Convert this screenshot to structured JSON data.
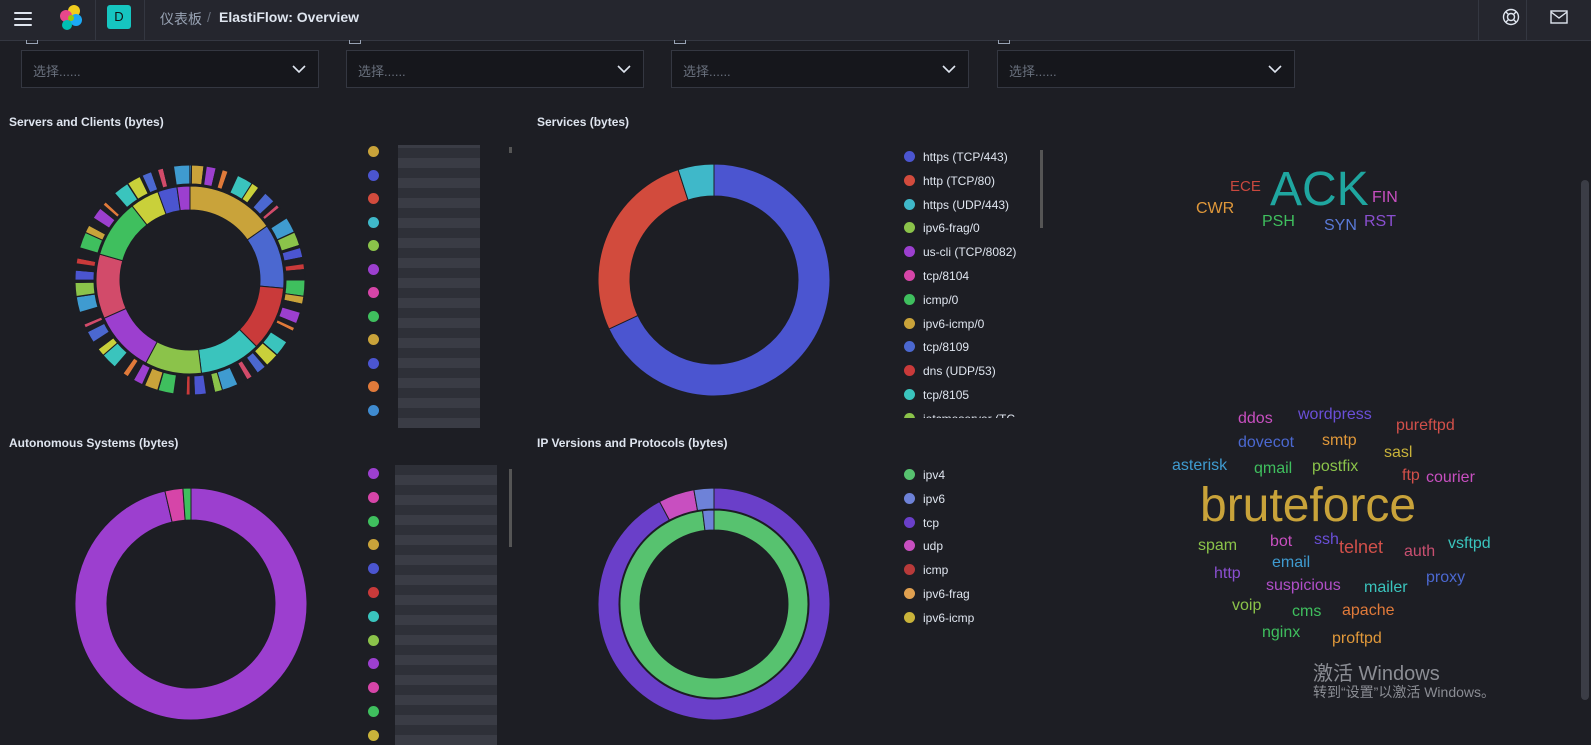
{
  "header": {
    "breadcrumb_parent": "仪表板",
    "breadcrumb_separator": "/",
    "breadcrumb_current": "ElastiFlow: Overview",
    "space_initial": "D"
  },
  "controls": {
    "placeholder": "选择......"
  },
  "panels": {
    "servers_title": "Servers and Clients (bytes)",
    "services_title": "Services (bytes)",
    "as_title": "Autonomous Systems (bytes)",
    "ipver_title": "IP Versions and Protocols (bytes)"
  },
  "services_legend": [
    {
      "label": "https (TCP/443)",
      "color": "#4b55d0"
    },
    {
      "label": "http (TCP/80)",
      "color": "#d24b3d"
    },
    {
      "label": "https (UDP/443)",
      "color": "#3fb8c9"
    },
    {
      "label": "ipv6-frag/0",
      "color": "#8bc34a"
    },
    {
      "label": "us-cli (TCP/8082)",
      "color": "#9c3fcf"
    },
    {
      "label": "tcp/8104",
      "color": "#d645a8"
    },
    {
      "label": "icmp/0",
      "color": "#3fbf5e"
    },
    {
      "label": "ipv6-icmp/0",
      "color": "#c9a33a"
    },
    {
      "label": "tcp/8109",
      "color": "#4b68d0"
    },
    {
      "label": "dns (UDP/53)",
      "color": "#c93a3a"
    },
    {
      "label": "tcp/8105",
      "color": "#3ac4bd"
    },
    {
      "label": "jetcmeserver (TC...",
      "color": "#8bc34a"
    }
  ],
  "ip_legend": [
    {
      "label": "ipv4",
      "color": "#57c26f"
    },
    {
      "label": "ipv6",
      "color": "#6e82d8"
    },
    {
      "label": "tcp",
      "color": "#6a3fc9"
    },
    {
      "label": "udp",
      "color": "#c84fc0"
    },
    {
      "label": "icmp",
      "color": "#b83a3a"
    },
    {
      "label": "ipv6-frag",
      "color": "#e0a050"
    },
    {
      "label": "ipv6-icmp",
      "color": "#c9b33a"
    }
  ],
  "servers_legend_colors": [
    "#c9a33a",
    "#4b55d0",
    "#d24b3d",
    "#3fb8c9",
    "#8bc34a",
    "#9c3fcf",
    "#d645a8",
    "#3fbf5e",
    "#c9a33a",
    "#4b55d0",
    "#e07a3a",
    "#3f8bd0"
  ],
  "as_legend_colors": [
    "#9c3fcf",
    "#d645a8",
    "#3fbf5e",
    "#c9a33a",
    "#4b55d0",
    "#c93a3a",
    "#3ac4bd",
    "#8bc34a",
    "#9c3fcf",
    "#d645a8",
    "#3fbf5e",
    "#c9b33a"
  ],
  "tcp_flags": [
    {
      "text": "ACK",
      "color": "#1fa6a0"
    },
    {
      "text": "ECE",
      "color": "#c9483e"
    },
    {
      "text": "FIN",
      "color": "#c84fc0"
    },
    {
      "text": "CWR",
      "color": "#e0983a"
    },
    {
      "text": "PSH",
      "color": "#3fbf5e"
    },
    {
      "text": "SYN",
      "color": "#5a7ad8"
    },
    {
      "text": "RST",
      "color": "#8a4fd0"
    }
  ],
  "threat_tags": [
    {
      "text": "ddos",
      "color": "#c84fc0"
    },
    {
      "text": "wordpress",
      "color": "#6a4fd8"
    },
    {
      "text": "pureftpd",
      "color": "#d2504a"
    },
    {
      "text": "dovecot",
      "color": "#4b68d0"
    },
    {
      "text": "smtp",
      "color": "#e0983a"
    },
    {
      "text": "sasl",
      "color": "#c9b33a"
    },
    {
      "text": "asterisk",
      "color": "#3f9bd0"
    },
    {
      "text": "qmail",
      "color": "#3fbf5e"
    },
    {
      "text": "postfix",
      "color": "#8bc34a"
    },
    {
      "text": "ftp",
      "color": "#d2504a"
    },
    {
      "text": "courier",
      "color": "#c84fc0"
    },
    {
      "text": "bruteforce",
      "color": "#c9a33a"
    },
    {
      "text": "spam",
      "color": "#8bc34a"
    },
    {
      "text": "bot",
      "color": "#c84fc0"
    },
    {
      "text": "ssh",
      "color": "#6a4fd8"
    },
    {
      "text": "telnet",
      "color": "#d2504a"
    },
    {
      "text": "auth",
      "color": "#c84f70"
    },
    {
      "text": "vsftpd",
      "color": "#3ac4bd"
    },
    {
      "text": "email",
      "color": "#3f9bd0"
    },
    {
      "text": "http",
      "color": "#8a4fd0"
    },
    {
      "text": "suspicious",
      "color": "#b04fc8"
    },
    {
      "text": "mailer",
      "color": "#3ac4bd"
    },
    {
      "text": "proxy",
      "color": "#4b68d0"
    },
    {
      "text": "voip",
      "color": "#8bc34a"
    },
    {
      "text": "cms",
      "color": "#3fbf5e"
    },
    {
      "text": "apache",
      "color": "#e07a3a"
    },
    {
      "text": "nginx",
      "color": "#3fbf5e"
    },
    {
      "text": "proftpd",
      "color": "#e0983a"
    }
  ],
  "watermark": {
    "title": "激活 Windows",
    "subtitle": "转到“设置”以激活 Windows。"
  }
}
